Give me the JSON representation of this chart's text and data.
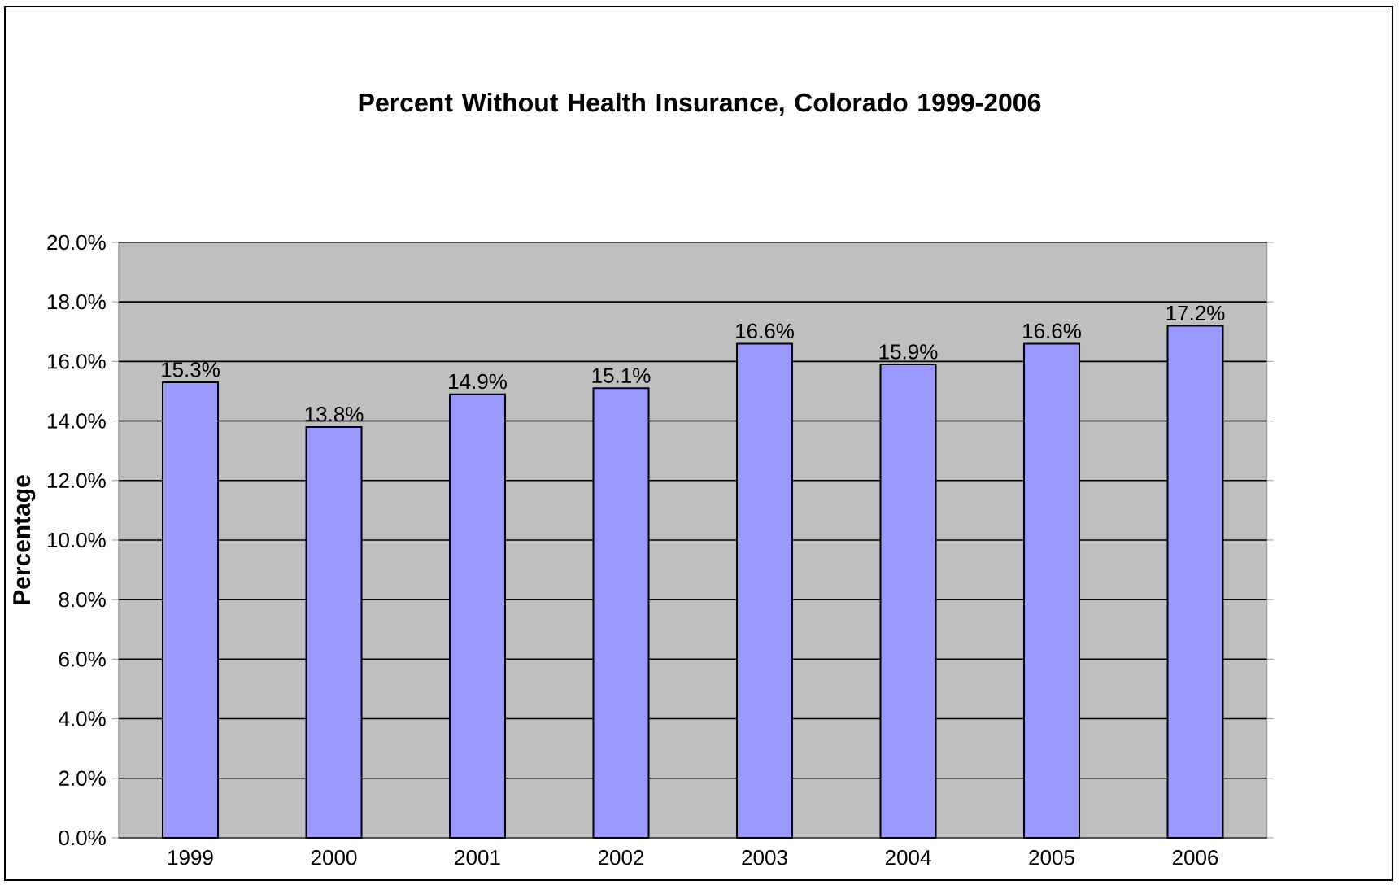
{
  "chart_data": {
    "type": "bar",
    "title": "Percent Without Health Insurance, Colorado 1999-2006",
    "ylabel": "Percentage",
    "categories": [
      "1999",
      "2000",
      "2001",
      "2002",
      "2003",
      "2004",
      "2005",
      "2006"
    ],
    "values": [
      15.3,
      13.8,
      14.9,
      15.1,
      16.6,
      15.9,
      16.6,
      17.2
    ],
    "value_labels": [
      "15.3%",
      "13.8%",
      "14.9%",
      "15.1%",
      "16.6%",
      "15.9%",
      "16.6%",
      "17.2%"
    ],
    "color": "#9999ff",
    "ylim": [
      0,
      20
    ],
    "yticks": [
      {
        "value": 0,
        "label": "0.0%"
      },
      {
        "value": 2,
        "label": "2.0%"
      },
      {
        "value": 4,
        "label": "4.0%"
      },
      {
        "value": 6,
        "label": "6.0%"
      },
      {
        "value": 8,
        "label": "8.0%"
      },
      {
        "value": 10,
        "label": "10.0%"
      },
      {
        "value": 12,
        "label": "12.0%"
      },
      {
        "value": 14,
        "label": "14.0%"
      },
      {
        "value": 16,
        "label": "16.0%"
      },
      {
        "value": 18,
        "label": "18.0%"
      },
      {
        "value": 20,
        "label": "20.0%"
      }
    ],
    "grid": "y"
  }
}
